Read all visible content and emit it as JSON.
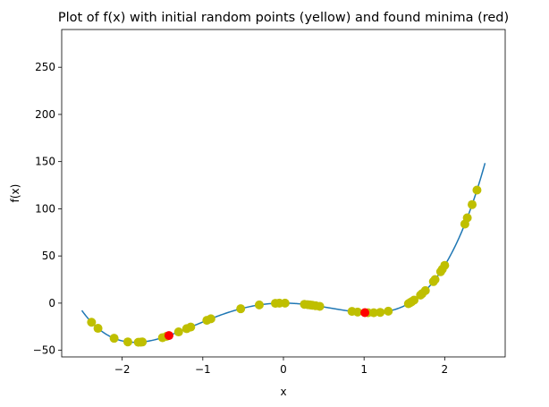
{
  "chart_data": {
    "type": "scatter",
    "title": "Plot of f(x) with initial random points (yellow) and found minima (red)",
    "xlabel": "x",
    "ylabel": "f(x)",
    "xlim": [
      -2.75,
      2.75
    ],
    "ylim": [
      -57,
      290
    ],
    "grid": false,
    "x_ticks": [
      -2,
      -1,
      0,
      1,
      2
    ],
    "x_tick_labels": [
      "−2",
      "−1",
      "0",
      "1",
      "2"
    ],
    "y_ticks": [
      -50,
      0,
      50,
      100,
      150,
      200,
      250
    ],
    "y_tick_labels": [
      "−50",
      "0",
      "50",
      "100",
      "150",
      "200",
      "250"
    ],
    "colors": {
      "curve": "#1f77b4",
      "initial_points": "#bfbf00",
      "minima": "#ff0000"
    },
    "series": [
      {
        "kind": "curve",
        "x_range": [
          -2.5,
          2.5
        ],
        "samples": 400
      },
      {
        "kind": "points",
        "x": [
          -2.38,
          -2.3,
          -2.1,
          -1.93,
          -1.8,
          -1.77,
          -1.75,
          -1.5,
          -1.45,
          -1.3,
          -1.2,
          -1.15,
          -0.95,
          -0.9,
          -0.53,
          -0.3,
          -0.1,
          -0.05,
          0.02,
          0.26,
          0.3,
          0.33,
          0.36,
          0.4,
          0.45,
          0.85,
          0.92,
          1.05,
          1.12,
          1.2,
          1.3,
          1.55,
          1.57,
          1.59,
          1.62,
          1.7,
          1.72,
          1.76,
          1.86,
          1.88,
          1.95,
          1.97,
          2.0,
          2.25,
          2.28,
          2.34,
          2.4
        ]
      },
      {
        "kind": "points",
        "x": [
          -1.42,
          1.01
        ]
      }
    ]
  }
}
